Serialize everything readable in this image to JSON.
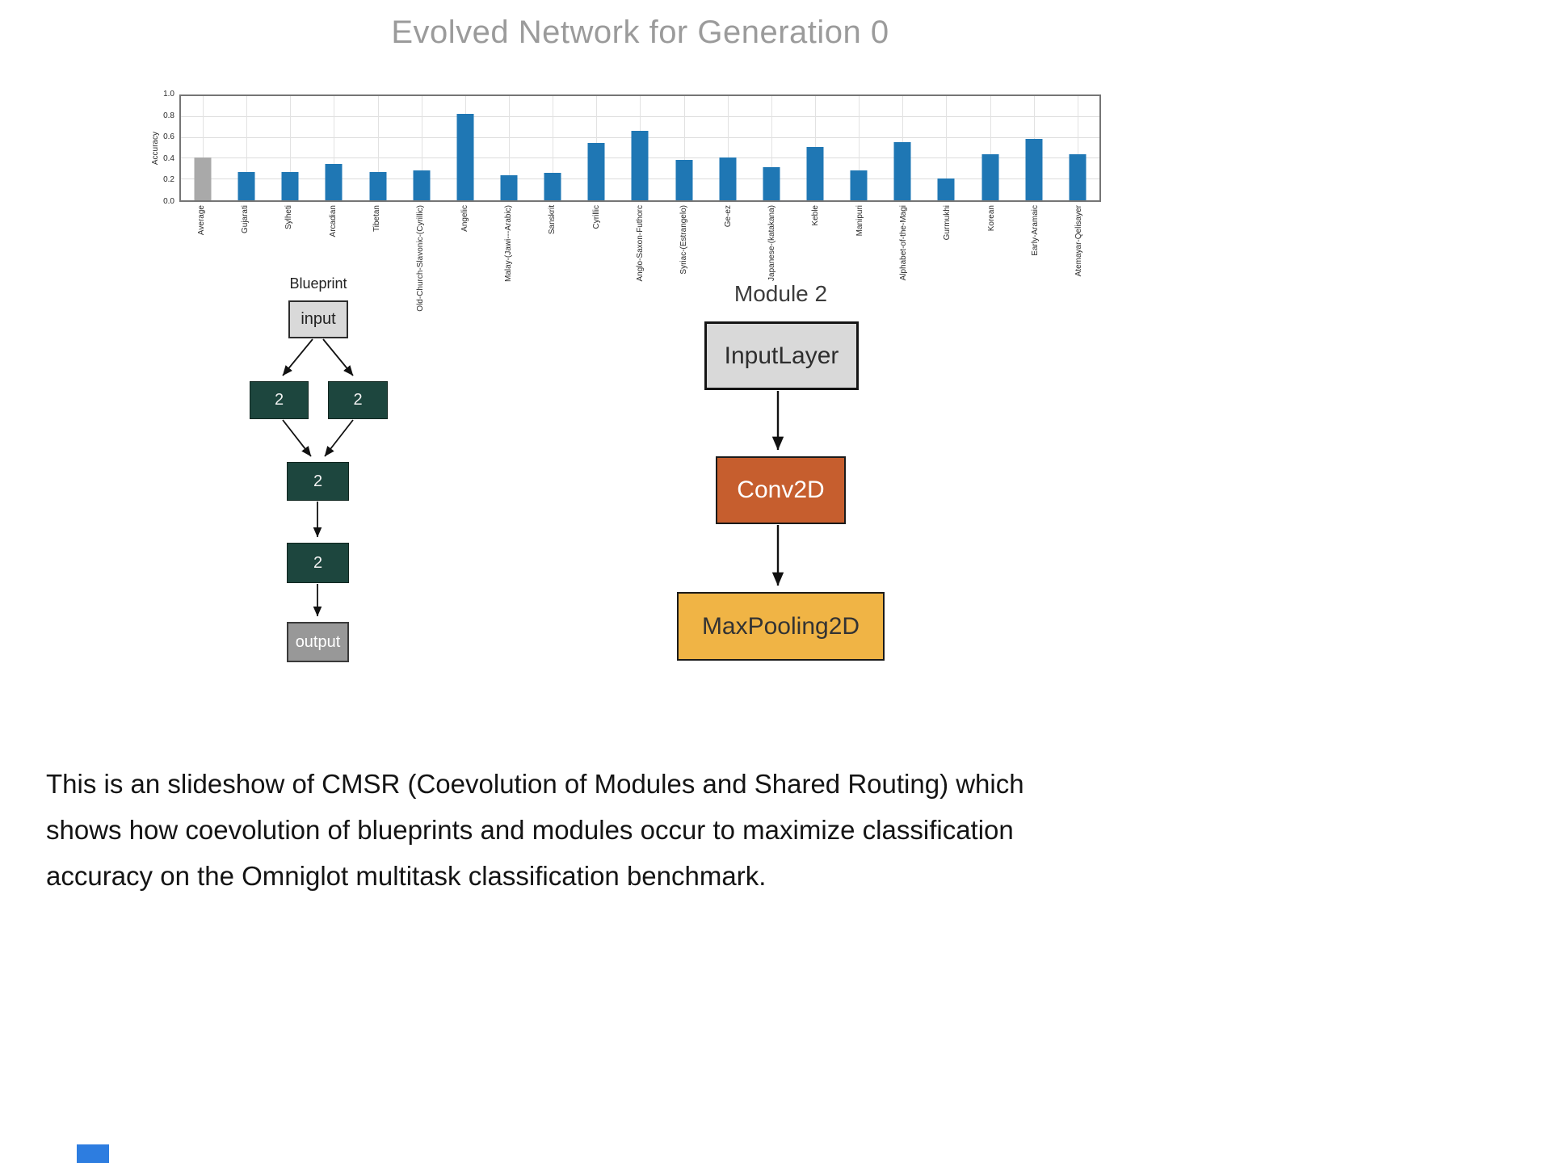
{
  "slide": {
    "title": "Evolved Network for Generation 0",
    "caption": "This is an slideshow of CMSR (Coevolution of Modules and Shared Routing) which\nshows how coevolution of blueprints and modules occur to maximize classification\naccuracy on the Omniglot multitask classification benchmark."
  },
  "chart_data": {
    "type": "bar",
    "title": "Evolved Network for Generation 0",
    "xlabel": "",
    "ylabel": "Accuracy",
    "ylim": [
      0.0,
      1.0
    ],
    "ytick_labels": [
      "0.0",
      "0.2",
      "0.4",
      "0.6",
      "0.8",
      "1.0"
    ],
    "grid": true,
    "legend_position": "none",
    "categories": [
      "Average",
      "Gujarati",
      "Sylheti",
      "Arcadian",
      "Tibetan",
      "Old-Church-Slavonic-(Cyrillic)",
      "Angelic",
      "Malay-(Jawi---Arabic)",
      "Sanskrit",
      "Cyrillic",
      "Anglo-Saxon-Futhorc",
      "Syriac-(Estrangelo)",
      "Ge-ez",
      "Japanese-(katakana)",
      "Keble",
      "Manipuri",
      "Alphabet-of-the-Magi",
      "Gurmukhi",
      "Korean",
      "Early-Aramaic",
      "Atemayar-Qelisayer"
    ],
    "values": [
      0.41,
      0.27,
      0.27,
      0.35,
      0.27,
      0.29,
      0.83,
      0.24,
      0.26,
      0.55,
      0.67,
      0.39,
      0.41,
      0.32,
      0.51,
      0.29,
      0.56,
      0.21,
      0.44,
      0.59,
      0.44
    ],
    "bar_color_default": "#1f77b4",
    "bar_color_average": "#a9a9a9"
  },
  "blueprint": {
    "title": "Blueprint",
    "nodes": [
      {
        "id": "input",
        "label": "input"
      },
      {
        "id": "module-a",
        "label": "2"
      },
      {
        "id": "module-b",
        "label": "2"
      },
      {
        "id": "module-c",
        "label": "2"
      },
      {
        "id": "module-d",
        "label": "2"
      },
      {
        "id": "output",
        "label": "output"
      }
    ],
    "edges": [
      [
        "input",
        "module-a"
      ],
      [
        "input",
        "module-b"
      ],
      [
        "module-a",
        "module-c"
      ],
      [
        "module-b",
        "module-c"
      ],
      [
        "module-c",
        "module-d"
      ],
      [
        "module-d",
        "output"
      ]
    ],
    "colors": {
      "input_bg": "#d9d9d9",
      "module_bg": "#1d463e",
      "output_bg": "#989898"
    }
  },
  "module2": {
    "title": "Module 2",
    "layers": [
      {
        "label": "InputLayer",
        "bg": "#d9d9d9",
        "fg": "#2e2e2e"
      },
      {
        "label": "Conv2D",
        "bg": "#c65e2e",
        "fg": "#ffffff"
      },
      {
        "label": "MaxPooling2D",
        "bg": "#f0b445",
        "fg": "#333333"
      }
    ]
  },
  "footer": {
    "scroll_thumb_color": "#2d7de0"
  }
}
